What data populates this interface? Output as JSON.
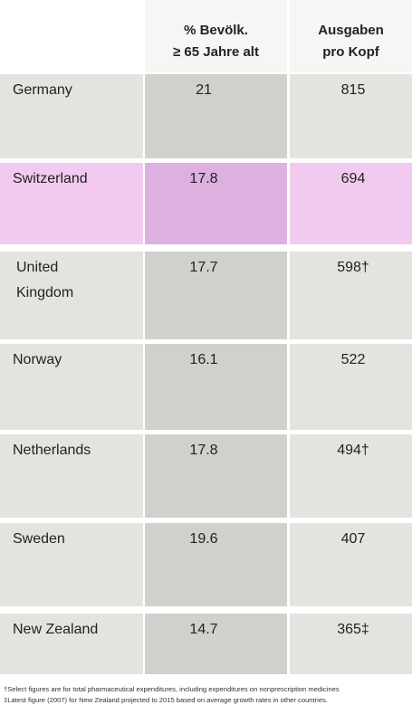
{
  "table": {
    "header": [
      [
        "% Bevölk.",
        "≥ 65 Jahre alt"
      ],
      [
        "Ausgaben",
        "pro Kopf"
      ]
    ],
    "rows": [
      [
        [
          "Germany"
        ],
        "21",
        "815"
      ],
      [
        [
          "Switzerland"
        ],
        "17.8",
        "694"
      ],
      [
        [
          "United",
          "Kingdom"
        ],
        "17.7",
        "598†"
      ],
      [
        [
          "Norway"
        ],
        "16.1",
        "522"
      ],
      [
        [
          "Netherlands"
        ],
        "17.8",
        "494†"
      ],
      [
        [
          "Sweden"
        ],
        "19.6",
        "407"
      ],
      [
        [
          "New Zealand"
        ],
        "14.7",
        "365‡"
      ]
    ],
    "highlight_row": 1
  },
  "footnotes": [
    "†Select figures are for total pharmaceutical expenditures, including expenditures on nonprescription medicines",
    "‡Latest figure (2007) for New Zealand projected to 2015 based on average growth rates in other countries."
  ]
}
